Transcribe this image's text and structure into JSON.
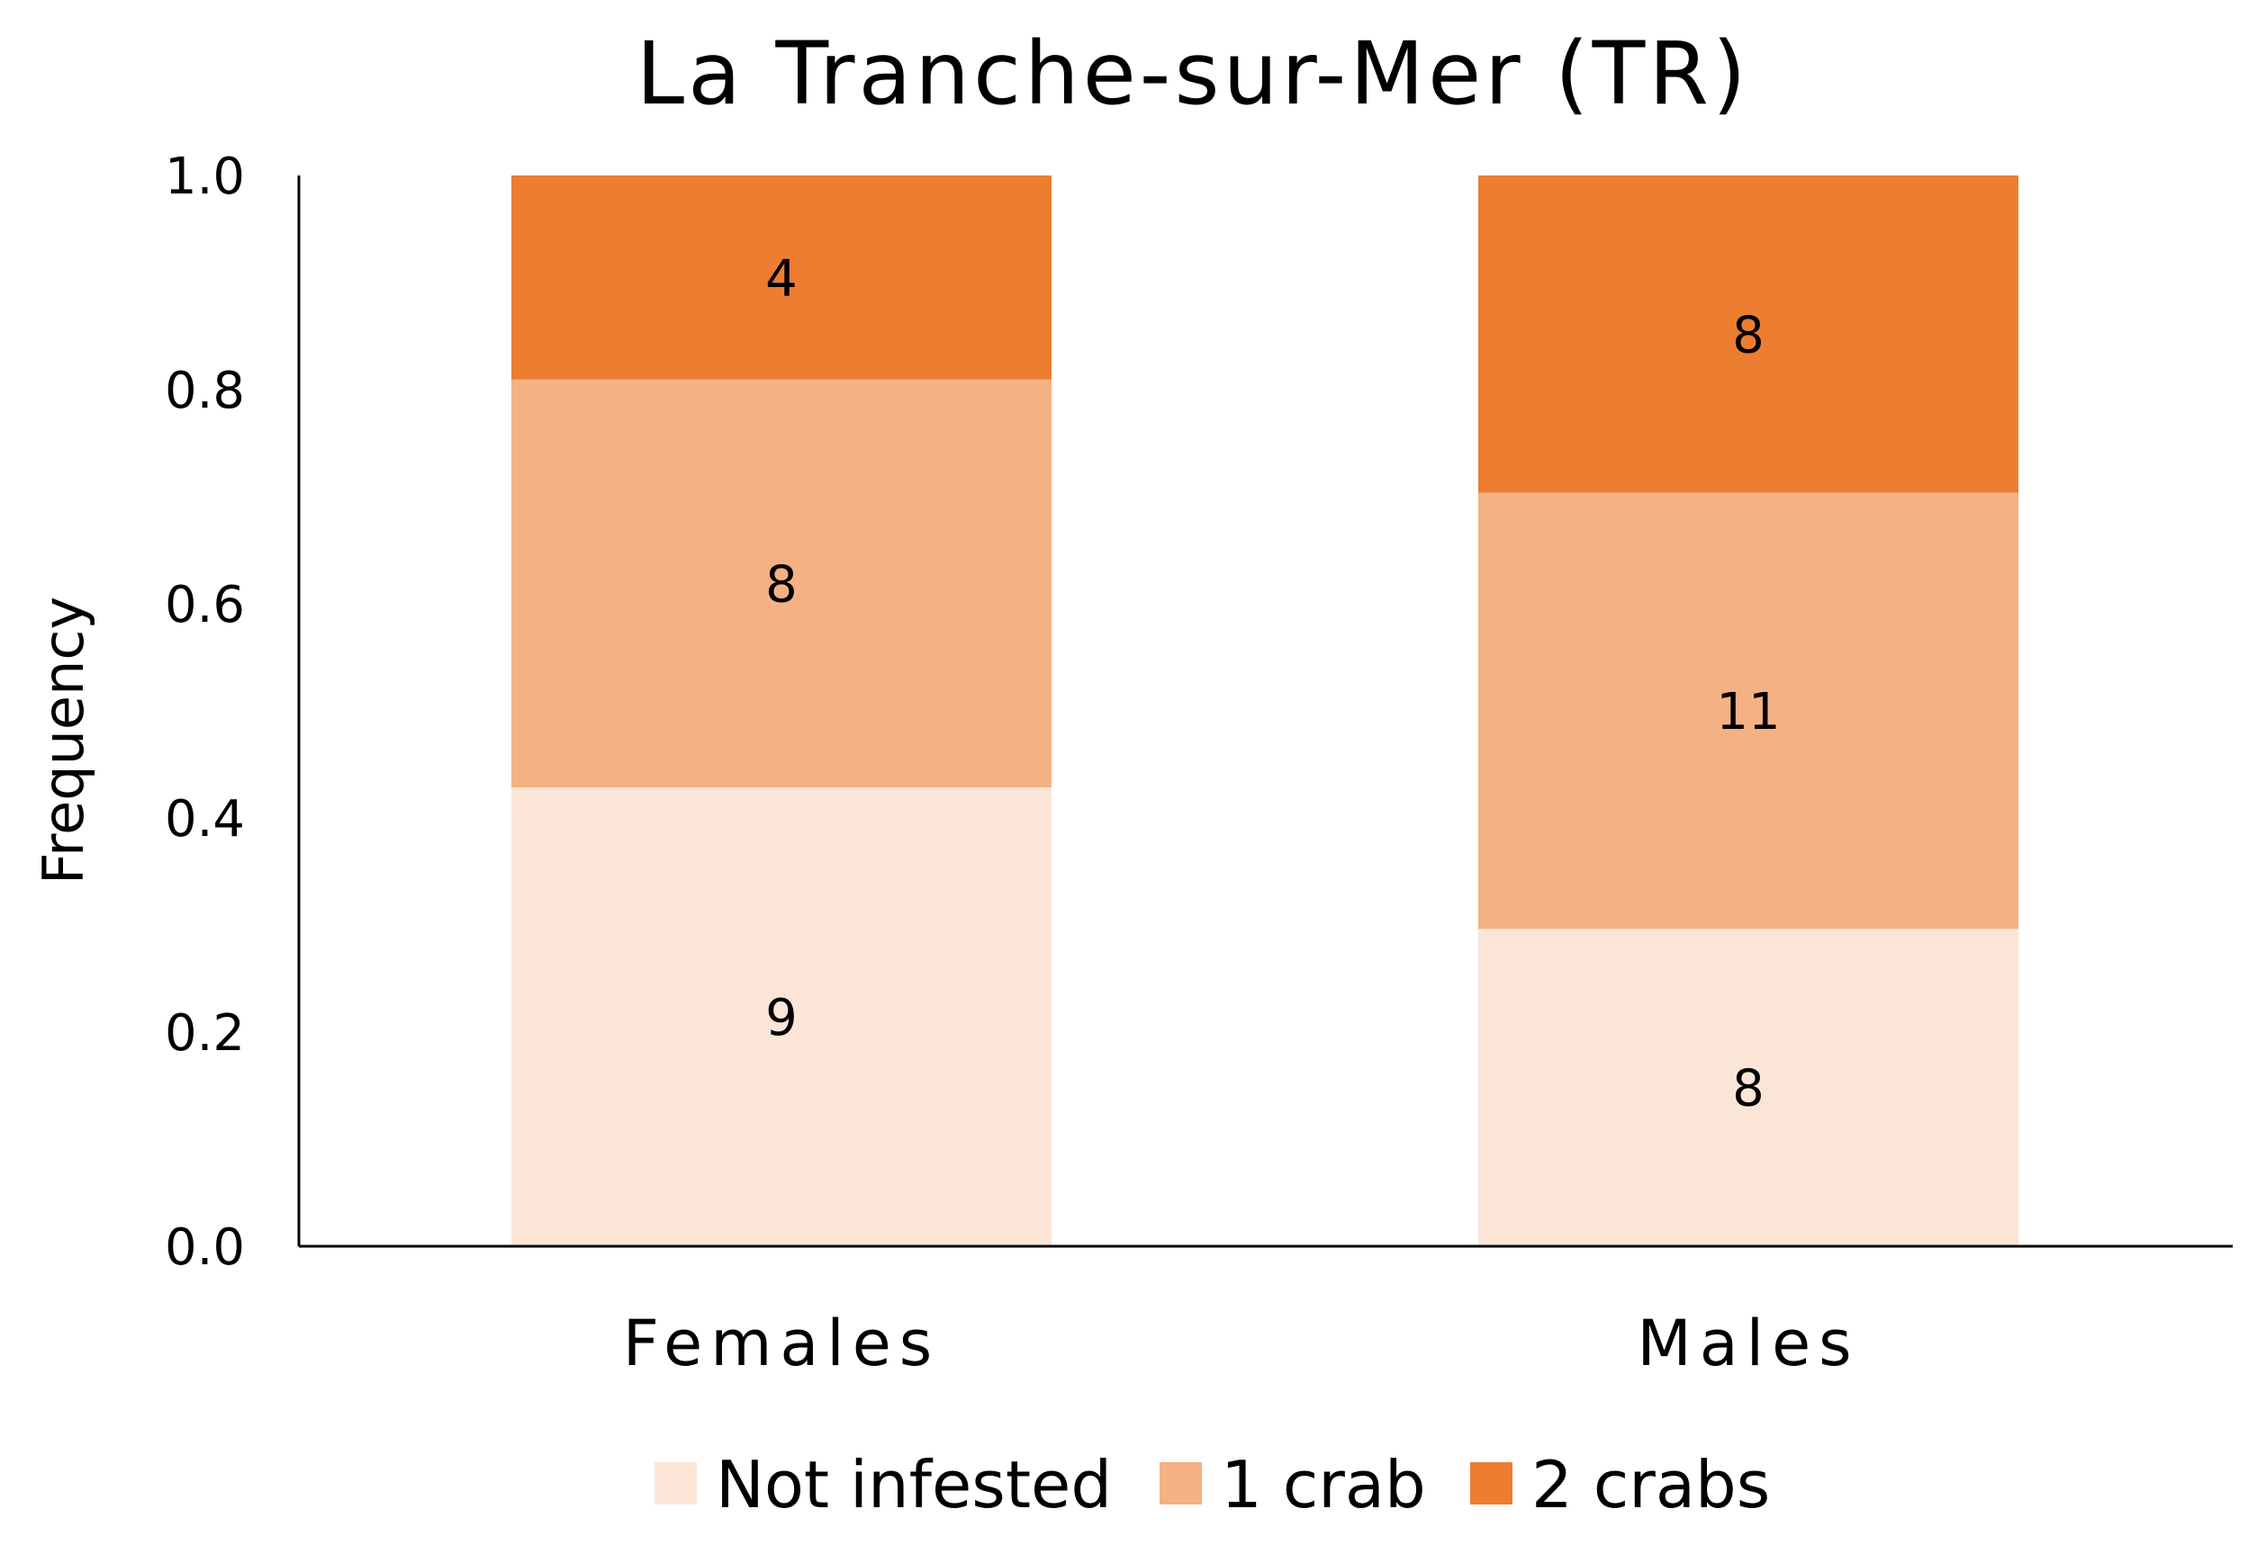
{
  "chart_data": {
    "type": "bar",
    "stacked": true,
    "normalized": true,
    "title": "La Tranche-sur-Mer (TR)",
    "xlabel": "",
    "ylabel": "Frequency",
    "ylim": [
      0,
      1
    ],
    "yticks": [
      "0.0",
      "0.2",
      "0.4",
      "0.6",
      "0.8",
      "1.0"
    ],
    "categories": [
      "Females",
      "Males"
    ],
    "series": [
      {
        "name": "Not infested",
        "values": [
          9,
          8
        ],
        "color": "#fbe5d6"
      },
      {
        "name": "1 crab",
        "values": [
          8,
          11
        ],
        "color": "#f4b183"
      },
      {
        "name": "2 crabs",
        "values": [
          4,
          8
        ],
        "color": "#ed7d31"
      }
    ],
    "legend_position": "bottom",
    "grid": false
  }
}
